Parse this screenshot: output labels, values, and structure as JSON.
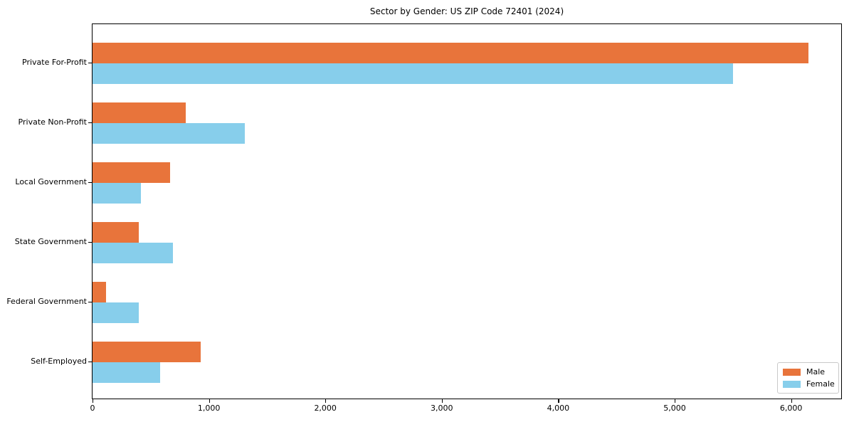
{
  "title": "Sector by Gender: US ZIP Code 72401 (2024)",
  "legend": {
    "position": "lower right",
    "items": [
      {
        "label": "Male",
        "color": "#e8743b"
      },
      {
        "label": "Female",
        "color": "#87ceeb"
      }
    ]
  },
  "chart_data": {
    "type": "bar",
    "orientation": "horizontal",
    "title": "Sector by Gender: US ZIP Code 72401 (2024)",
    "xlabel": "",
    "ylabel": "",
    "categories": [
      "Private For-Profit",
      "Private Non-Profit",
      "Local Government",
      "State Government",
      "Federal Government",
      "Self-Employed"
    ],
    "series": [
      {
        "name": "Male",
        "color": "#e8743b",
        "values": [
          6150,
          800,
          665,
          400,
          115,
          930
        ]
      },
      {
        "name": "Female",
        "color": "#87ceeb",
        "values": [
          5500,
          1310,
          415,
          690,
          400,
          580
        ]
      }
    ],
    "xlim": [
      0,
      6430
    ],
    "x_tick_values": [
      0,
      1000,
      2000,
      3000,
      4000,
      5000,
      6000
    ],
    "x_tick_labels": [
      "0",
      "1,000",
      "2,000",
      "3,000",
      "4,000",
      "5,000",
      "6,000"
    ],
    "grid": false,
    "legend_position": "lower right"
  }
}
